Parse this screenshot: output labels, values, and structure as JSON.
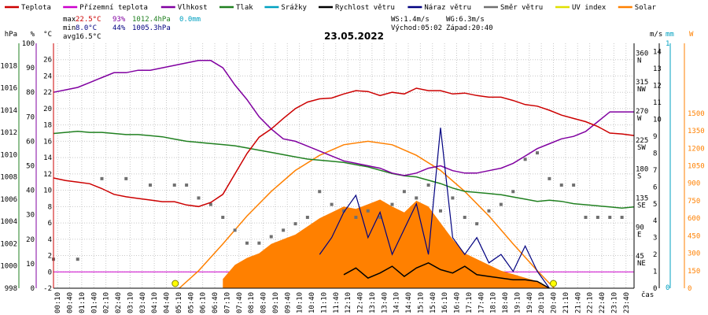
{
  "chart_data": {
    "type": "line",
    "title": "23.05.2022",
    "legend": [
      {
        "name": "Teplota",
        "color": "#cc0000"
      },
      {
        "name": "Přízemní teplota",
        "color": "#cc00cc"
      },
      {
        "name": "Vlhkost",
        "color": "#8000a0"
      },
      {
        "name": "Tlak",
        "color": "#208020"
      },
      {
        "name": "Srážky",
        "color": "#00a0c0"
      },
      {
        "name": "Rychlost větru",
        "color": "#000000"
      },
      {
        "name": "Náraz větru",
        "color": "#000080"
      },
      {
        "name": "Směr větru",
        "color": "#707070"
      },
      {
        "name": "UV index",
        "color": "#e0e000"
      },
      {
        "name": "Solar",
        "color": "#ff8000"
      }
    ],
    "stats": {
      "max_label": "max",
      "max_temp": "22.5°C",
      "max_hum": "93%",
      "max_press": "1012.4hPa",
      "max_rain": "0.0mm",
      "min_label": "min",
      "min_temp": "8.0°C",
      "min_hum": "44%",
      "min_press": "1005.3hPa",
      "avg_label": "avg",
      "avg_temp": "16.5°C",
      "ws": "WS:1.4m/s",
      "wg": "WG:6.3m/s",
      "sunrise": "Východ:05:02",
      "sunset": "Západ:20:40"
    },
    "axes": {
      "hpa": {
        "unit": "hPa",
        "ticks": [
          998,
          1000,
          1002,
          1004,
          1006,
          1008,
          1010,
          1012,
          1014,
          1016,
          1018
        ],
        "range": [
          998,
          1020
        ]
      },
      "percent": {
        "unit": "%",
        "ticks": [
          0,
          10,
          20,
          30,
          40,
          50,
          60,
          70,
          80,
          90,
          100
        ],
        "range": [
          0,
          100
        ]
      },
      "temp": {
        "unit": "°C",
        "ticks": [
          -2,
          0,
          2,
          4,
          6,
          8,
          10,
          12,
          14,
          16,
          18,
          20,
          22,
          24,
          26
        ],
        "range": [
          -2,
          28
        ]
      },
      "dir": {
        "unit": "",
        "ticks": [
          "45 NE",
          "90 E",
          "135 SE",
          "180 S",
          "225 SW",
          "270 W",
          "315 NW",
          "360 N"
        ],
        "values": [
          45,
          90,
          135,
          180,
          225,
          270,
          315,
          360
        ]
      },
      "ms": {
        "unit": "m/s",
        "ticks": [
          0,
          1,
          2,
          3,
          4,
          5,
          6,
          7,
          8,
          9,
          10,
          11,
          12,
          13,
          14
        ],
        "range": [
          0,
          14.5
        ]
      },
      "mm": {
        "unit": "mm",
        "ticks": [
          0,
          1
        ],
        "range": [
          0,
          1
        ]
      },
      "solar": {
        "unit": "W",
        "ticks": [
          0,
          150,
          300,
          450,
          600,
          750,
          900,
          1050,
          1200,
          1350,
          1500
        ],
        "range": [
          0,
          2100
        ]
      },
      "time_label": "čas",
      "time_ticks": [
        "00:10",
        "00:40",
        "01:10",
        "01:40",
        "02:10",
        "02:40",
        "03:10",
        "03:40",
        "04:10",
        "04:40",
        "05:10",
        "05:40",
        "06:10",
        "06:40",
        "07:10",
        "07:40",
        "08:10",
        "08:40",
        "09:10",
        "09:40",
        "10:10",
        "10:40",
        "11:10",
        "11:40",
        "12:10",
        "12:40",
        "13:10",
        "13:40",
        "14:10",
        "14:40",
        "15:10",
        "15:40",
        "16:10",
        "16:40",
        "17:10",
        "17:40",
        "18:10",
        "18:40",
        "19:10",
        "19:40",
        "20:10",
        "20:40",
        "21:10",
        "21:40",
        "22:10",
        "22:40",
        "23:10",
        "23:40"
      ]
    },
    "series": {
      "temperature_x": [
        0,
        0.5,
        1,
        1.5,
        2,
        2.5,
        3,
        3.5,
        4,
        4.5,
        5,
        5.5,
        6,
        6.5,
        7,
        7.5,
        8,
        8.5,
        9,
        9.5,
        10,
        10.5,
        11,
        11.5,
        12,
        12.5,
        13,
        13.5,
        14,
        14.5,
        15,
        15.5,
        16,
        16.5,
        17,
        17.5,
        18,
        18.5,
        19,
        19.5,
        20,
        20.5,
        21,
        21.5,
        22,
        22.5,
        23,
        23.5,
        24
      ],
      "temperature": [
        11.5,
        11.2,
        11,
        10.8,
        10.2,
        9.5,
        9.2,
        9,
        8.8,
        8.6,
        8.6,
        8.2,
        8,
        8.5,
        9.5,
        12,
        14.5,
        16.5,
        17.5,
        18.8,
        20,
        20.8,
        21.2,
        21.3,
        21.8,
        22.2,
        22.1,
        21.6,
        22,
        21.8,
        22.5,
        22.2,
        22.2,
        21.8,
        21.9,
        21.6,
        21.4,
        21.4,
        21,
        20.5,
        20.3,
        19.8,
        19.2,
        18.8,
        18.4,
        17.8,
        17,
        16.9,
        16.7
      ],
      "humidity_x": [
        0,
        0.5,
        1,
        1.5,
        2,
        2.5,
        3,
        3.5,
        4,
        4.5,
        5,
        5.5,
        6,
        6.5,
        7,
        7.5,
        8,
        8.5,
        9,
        9.5,
        10,
        10.5,
        11,
        11.5,
        12,
        12.5,
        13,
        13.5,
        14,
        14.5,
        15,
        15.5,
        16,
        16.5,
        17,
        17.5,
        18,
        18.5,
        19,
        19.5,
        20,
        20.5,
        21,
        21.5,
        22,
        22.5,
        23,
        23.5,
        24
      ],
      "humidity": [
        80,
        81,
        82,
        84,
        86,
        88,
        88,
        89,
        89,
        90,
        91,
        92,
        93,
        93,
        90,
        83,
        77,
        70,
        65,
        61,
        60,
        58,
        56,
        54,
        52,
        51,
        50,
        49,
        47,
        46,
        47,
        49,
        50,
        48,
        47,
        47,
        48,
        49,
        51,
        54,
        57,
        59,
        61,
        62,
        64,
        68,
        72,
        72,
        72
      ],
      "pressure_x": [
        0,
        0.5,
        1,
        1.5,
        2,
        2.5,
        3,
        3.5,
        4,
        4.5,
        5,
        5.5,
        6,
        6.5,
        7,
        7.5,
        8,
        8.5,
        9,
        9.5,
        10,
        10.5,
        11,
        11.5,
        12,
        12.5,
        13,
        13.5,
        14,
        14.5,
        15,
        15.5,
        16,
        16.5,
        17,
        17.5,
        18,
        18.5,
        19,
        19.5,
        20,
        20.5,
        21,
        21.5,
        22,
        22.5,
        23,
        23.5,
        24
      ],
      "pressure": [
        1011.9,
        1012,
        1012.1,
        1012,
        1012,
        1011.9,
        1011.8,
        1011.8,
        1011.7,
        1011.6,
        1011.4,
        1011.2,
        1011.1,
        1011,
        1010.9,
        1010.8,
        1010.6,
        1010.4,
        1010.2,
        1010,
        1009.8,
        1009.6,
        1009.5,
        1009.4,
        1009.3,
        1009.1,
        1008.9,
        1008.6,
        1008.3,
        1008.1,
        1008,
        1007.7,
        1007.4,
        1007,
        1006.7,
        1006.6,
        1006.5,
        1006.4,
        1006.2,
        1006,
        1005.8,
        1005.9,
        1005.8,
        1005.6,
        1005.5,
        1005.4,
        1005.3,
        1005.2,
        1005.3
      ],
      "solar_x": [
        5.2,
        6,
        7,
        8,
        9,
        10,
        11,
        12,
        13,
        14,
        15,
        16,
        17,
        18,
        19,
        20,
        20.7
      ],
      "solar_curve": [
        0,
        150,
        380,
        620,
        830,
        1010,
        1140,
        1230,
        1260,
        1230,
        1140,
        1010,
        830,
        620,
        380,
        150,
        0
      ],
      "wind_speed_x": [
        12,
        12.5,
        13,
        13.5,
        14,
        14.5,
        15,
        15.5,
        16,
        16.5,
        17,
        17.5,
        18,
        18.5,
        19,
        19.5,
        20,
        20.5
      ],
      "wind_speed": [
        0.8,
        1.2,
        0.6,
        0.9,
        1.3,
        0.7,
        1.2,
        1.5,
        1.1,
        0.9,
        1.3,
        0.8,
        0.7,
        0.6,
        0.5,
        0.5,
        0.4,
        0
      ],
      "wind_gust_x": [
        11,
        11.5,
        12,
        12.5,
        13,
        13.5,
        14,
        14.5,
        15,
        15.5,
        16,
        16.5,
        17,
        17.5,
        18,
        18.5,
        19,
        19.5,
        20,
        20.5
      ],
      "wind_gust": [
        2,
        3,
        4.5,
        5.5,
        3,
        4.5,
        2,
        3.5,
        5,
        2,
        9.5,
        3,
        2,
        3,
        1.5,
        2,
        1,
        2.5,
        1,
        0
      ],
      "solar_measured_x": [
        7,
        7.5,
        8,
        8.5,
        9,
        9.5,
        10,
        10.5,
        11,
        11.5,
        12,
        12.5,
        13,
        13.5,
        14,
        14.5,
        15,
        15.5,
        16,
        16.5,
        17,
        17.5,
        18,
        18.5,
        19,
        19.5,
        20,
        20.5
      ],
      "solar_measured": [
        80,
        200,
        260,
        300,
        380,
        420,
        460,
        530,
        600,
        650,
        700,
        680,
        720,
        760,
        700,
        650,
        750,
        700,
        560,
        420,
        300,
        250,
        200,
        150,
        120,
        90,
        60,
        0
      ],
      "wind_dir_x": [
        0,
        1,
        2,
        3,
        4,
        5,
        5.5,
        6,
        6.5,
        7,
        7.5,
        8,
        8.5,
        9,
        9.5,
        10,
        10.5,
        11,
        11.5,
        12,
        12.5,
        13,
        13.5,
        14,
        14.5,
        15,
        15.5,
        16,
        16.5,
        17,
        17.5,
        18,
        18.5,
        19,
        19.5,
        20,
        20.5,
        21,
        21.5,
        22,
        22.5,
        23,
        23.5
      ],
      "wind_dir": [
        45,
        45,
        170,
        170,
        160,
        160,
        160,
        140,
        130,
        110,
        90,
        70,
        70,
        80,
        90,
        100,
        110,
        150,
        130,
        120,
        110,
        120,
        110,
        130,
        150,
        140,
        160,
        120,
        140,
        110,
        100,
        120,
        130,
        150,
        200,
        210,
        170,
        160,
        160,
        110,
        110,
        110,
        110
      ]
    }
  }
}
